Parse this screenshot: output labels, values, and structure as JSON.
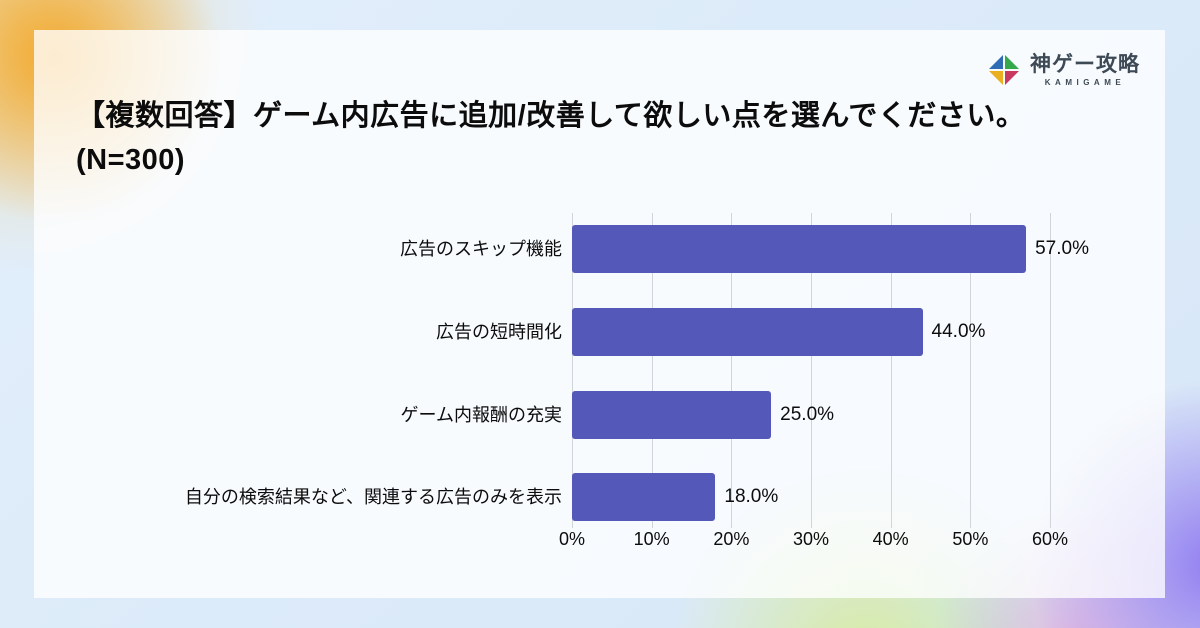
{
  "logo": {
    "name": "神ゲー攻略",
    "subtitle": "KAMIGAME",
    "icon": "kamigame-pinwheel-icon",
    "icon_colors": {
      "green": "#36a84c",
      "blue": "#2f6cb3",
      "yellow": "#eab01f",
      "crimson": "#c9395f"
    },
    "text_color": "#3d4955"
  },
  "title": {
    "line1": "【複数回答】ゲーム内広告に追加/改善して欲しい点を選んでください。",
    "line2": "(N=300)",
    "full": "【複数回答】ゲーム内広告に追加/改善して欲しい点を選んでください。(N=300)"
  },
  "chart_data": {
    "type": "bar",
    "orientation": "horizontal",
    "title": "【複数回答】ゲーム内広告に追加/改善して欲しい点を選んでください。(N=300)",
    "categories": [
      "広告のスキップ機能",
      "広告の短時間化",
      "ゲーム内報酬の充実",
      "自分の検索結果など、関連する広告のみを表示"
    ],
    "values": [
      57.0,
      44.0,
      25.0,
      18.0
    ],
    "value_labels": [
      "57.0%",
      "44.0%",
      "25.0%",
      "18.0%"
    ],
    "xlabel": "",
    "ylabel": "",
    "xlim": [
      0,
      60
    ],
    "x_ticks": [
      "0%",
      "10%",
      "20%",
      "30%",
      "40%",
      "50%",
      "60%"
    ],
    "x_tick_values": [
      0,
      10,
      20,
      30,
      40,
      50,
      60
    ],
    "grid": "vertical",
    "legend": "none",
    "bar_color": "#5458b8",
    "gridline_color": "#d0d4db",
    "text_color": "#0c0c0c"
  }
}
